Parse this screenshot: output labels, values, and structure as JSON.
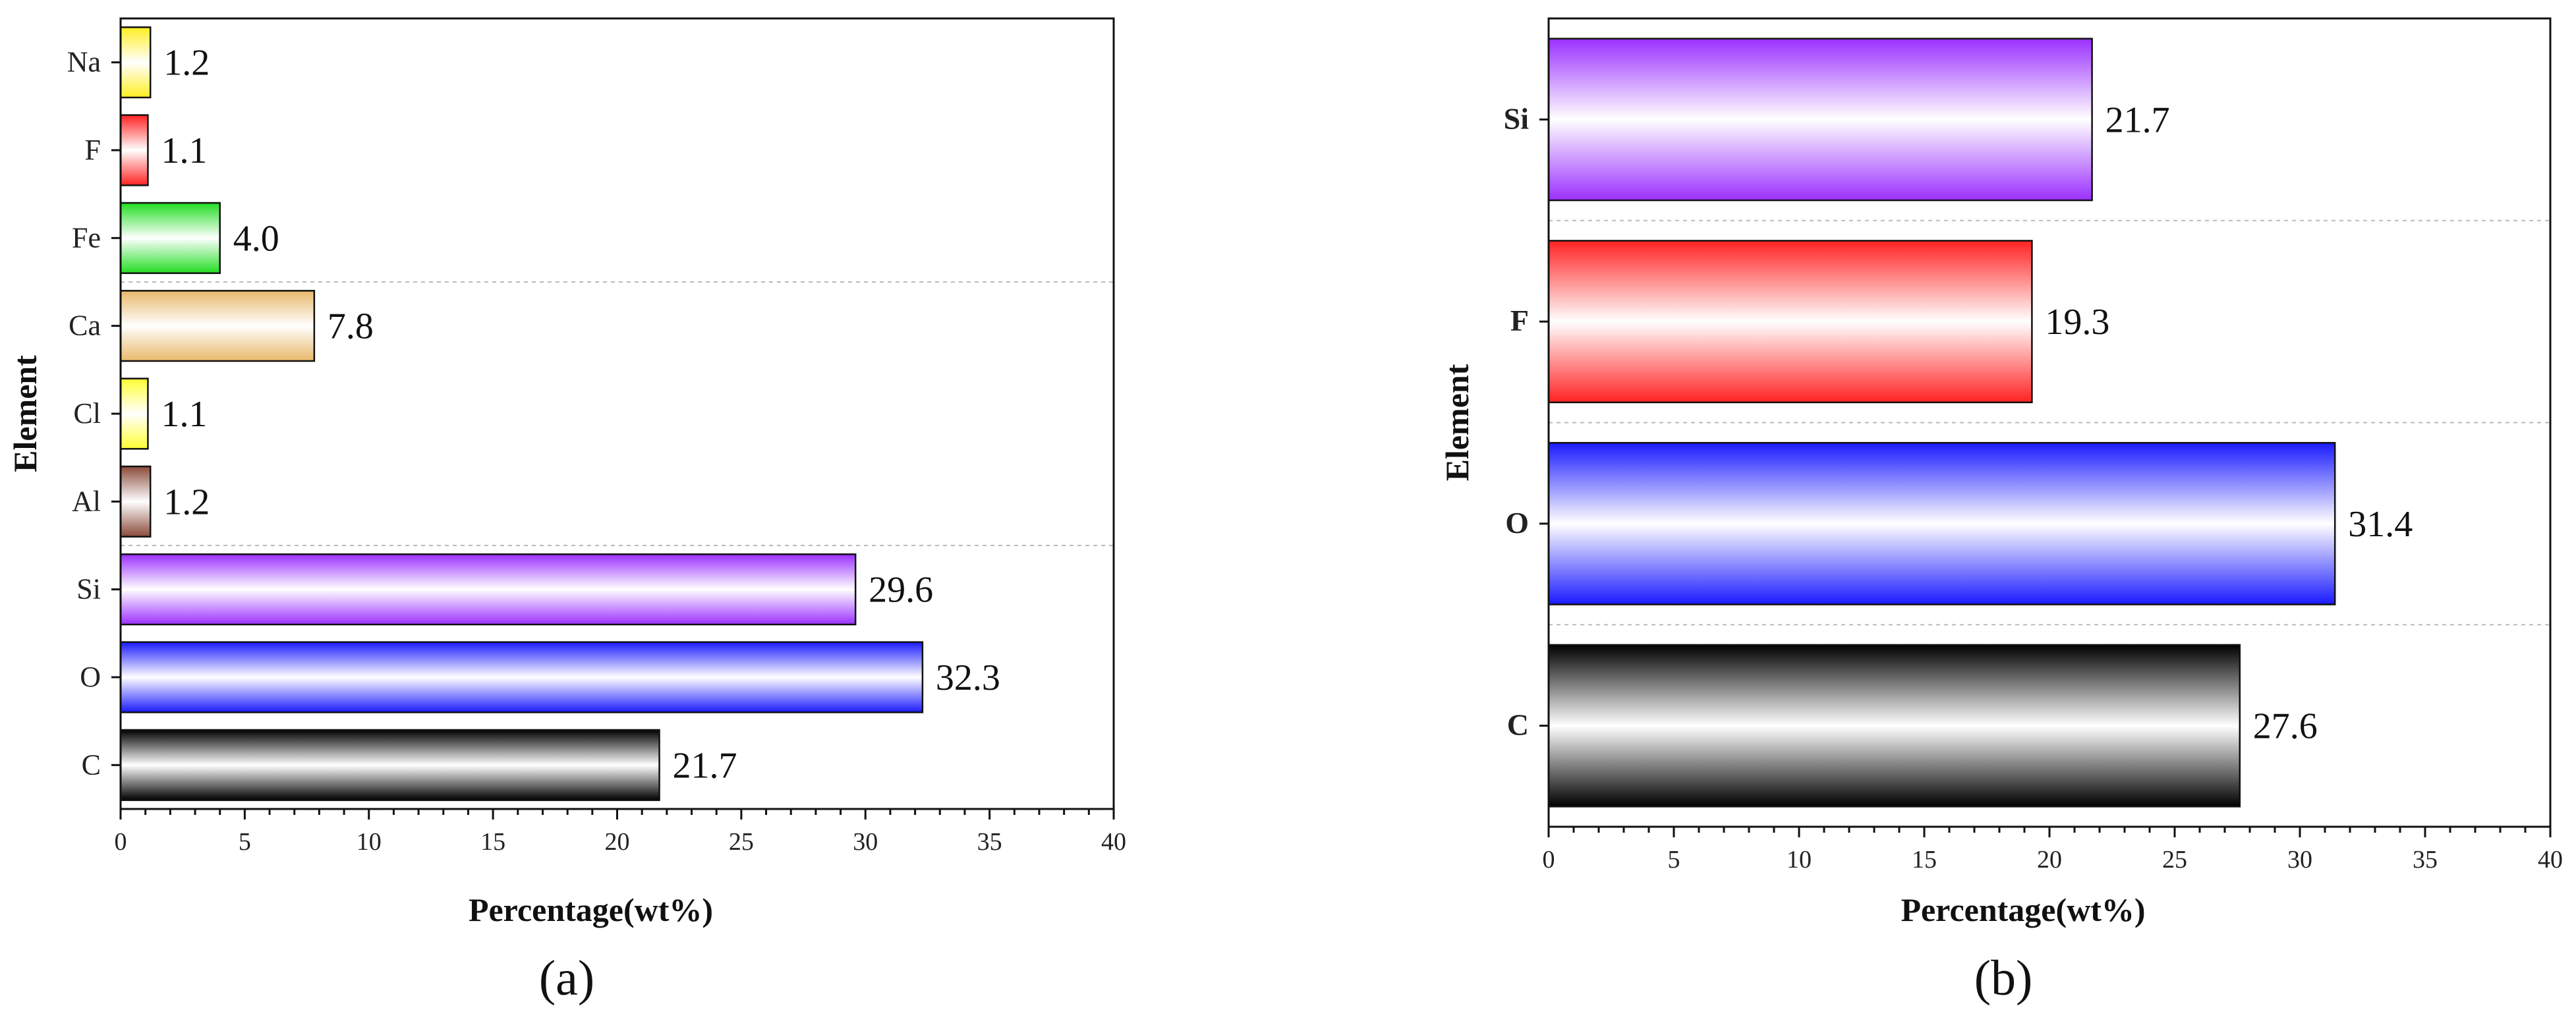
{
  "chart_data": [
    {
      "id": "a",
      "type": "bar",
      "orientation": "horizontal",
      "categories": [
        "C",
        "O",
        "Si",
        "Al",
        "Cl",
        "Ca",
        "Fe",
        "F",
        "Na"
      ],
      "values": [
        21.7,
        32.3,
        29.6,
        1.2,
        1.1,
        7.8,
        4.0,
        1.1,
        1.2
      ],
      "value_labels": [
        "21.7",
        "32.3",
        "29.6",
        "1.2",
        "1.1",
        "7.8",
        "4.0",
        "1.1",
        "1.2"
      ],
      "colors": [
        "#000000",
        "#1a1aff",
        "#9b30ff",
        "#8b4a3a",
        "#ffff33",
        "#e8b86a",
        "#22dd22",
        "#ff2222",
        "#ffee22"
      ],
      "xlabel": "Percentage(wt%)",
      "ylabel": "Element",
      "xlim": [
        0,
        40
      ],
      "xticks": [
        0,
        5,
        10,
        15,
        20,
        25,
        30,
        35,
        40
      ],
      "caption": "(a)",
      "grid": "dashed separators"
    },
    {
      "id": "b",
      "type": "bar",
      "orientation": "horizontal",
      "categories": [
        "C",
        "O",
        "F",
        "Si"
      ],
      "values": [
        27.6,
        31.4,
        19.3,
        21.7
      ],
      "value_labels": [
        "27.6",
        "31.4",
        "19.3",
        "21.7"
      ],
      "colors": [
        "#000000",
        "#1a1aff",
        "#ff2222",
        "#9b30ff"
      ],
      "xlabel": "Percentage(wt%)",
      "ylabel": "Element",
      "xlim": [
        0,
        40
      ],
      "xticks": [
        0,
        5,
        10,
        15,
        20,
        25,
        30,
        35,
        40
      ],
      "caption": "(b)",
      "grid": "dashed separators"
    }
  ]
}
